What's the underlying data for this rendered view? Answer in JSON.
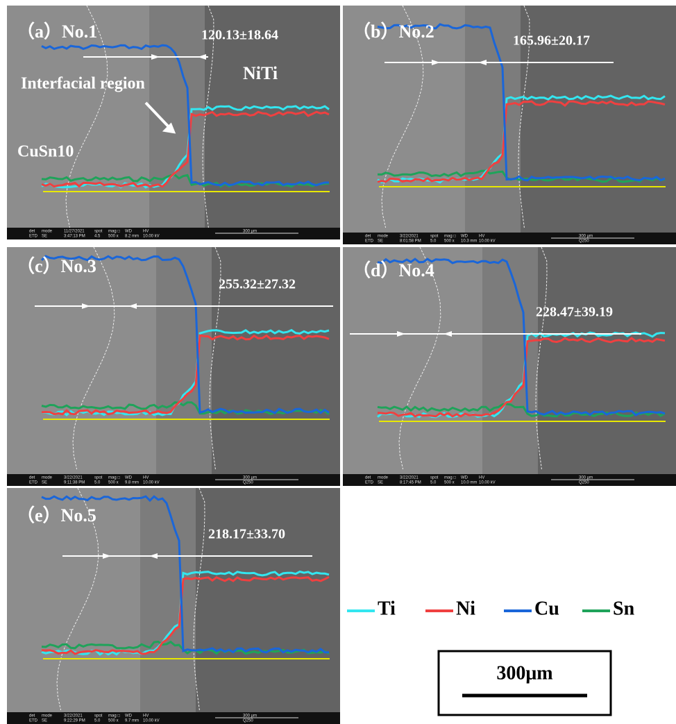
{
  "info_headers": [
    "det",
    "mode",
    "spot",
    "mag □",
    "WD",
    "HV"
  ],
  "panels": [
    {
      "title": "（a）No.1",
      "measurement": "120.13±18.64",
      "annotations": [
        "Interfacial region",
        "NiTi",
        "CuSn10"
      ],
      "info": {
        "det": "ETD",
        "mode": "SE",
        "date": "11/27/2021",
        "time": "3:47:13 PM",
        "spot": "4.5",
        "mag": "500 x",
        "wd": "8.2 mm",
        "hv": "10.00 kV",
        "hfw": "300 μm"
      }
    },
    {
      "title": "（b）No.2",
      "measurement": "165.96±20.17",
      "info": {
        "det": "ETD",
        "mode": "SE",
        "date": "3/22/2021",
        "time": "8:01:58 PM",
        "spot": "5.0",
        "mag": "500 x",
        "wd": "10.3 mm",
        "hv": "10.00 kV",
        "hfw": "300 μm",
        "sample": "Q250"
      }
    },
    {
      "title": "（c）No.3",
      "measurement": "255.32±27.32",
      "info": {
        "det": "ETD",
        "mode": "SE",
        "date": "3/22/2021",
        "time": "9:11:38 PM",
        "spot": "5.0",
        "mag": "500 x",
        "wd": "9.8 mm",
        "hv": "10.00 kV",
        "hfw": "300 μm",
        "sample": "Q250"
      }
    },
    {
      "title": "（d）No.4",
      "measurement": "228.47±39.19",
      "info": {
        "det": "ETD",
        "mode": "SE",
        "date": "3/22/2021",
        "time": "8:17:45 PM",
        "spot": "5.0",
        "mag": "500 x",
        "wd": "10.0 mm",
        "hv": "10.00 kV",
        "hfw": "300 μm",
        "sample": "Q250"
      }
    },
    {
      "title": "（e）No.5",
      "measurement": "218.17±33.70",
      "info": {
        "det": "ETD",
        "mode": "SE",
        "date": "3/22/2021",
        "time": "9:22:29 PM",
        "spot": "5.0",
        "mag": "500 x",
        "wd": "9.7 mm",
        "hv": "10.00 kV",
        "hfw": "300 μm",
        "sample": "Q250"
      }
    }
  ],
  "legend": [
    {
      "name": "Ti",
      "color": "#33e6f0"
    },
    {
      "name": "Ni",
      "color": "#f04040"
    },
    {
      "name": "Cu",
      "color": "#1a66d9"
    },
    {
      "name": "Sn",
      "color": "#1fa35a"
    }
  ],
  "scale_bar": "300μm"
}
